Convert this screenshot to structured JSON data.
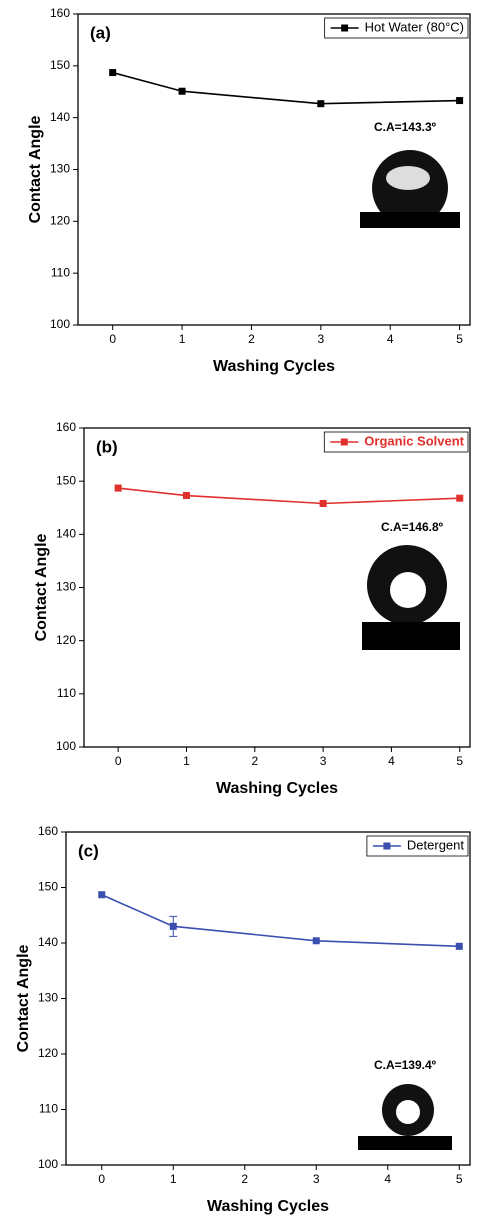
{
  "chart_data": [
    {
      "type": "line",
      "panel_label": "(a)",
      "annotation": "C.A=143.3º",
      "x_label": "Washing Cycles",
      "y_label": "Contact Angle",
      "x": [
        0,
        1,
        3,
        5
      ],
      "xlim": [
        -0.5,
        5.15
      ],
      "xticks": [
        0,
        1,
        2,
        3,
        4,
        5
      ],
      "ylim": [
        100,
        160
      ],
      "yticks": [
        100,
        110,
        120,
        130,
        140,
        150,
        160
      ],
      "legend": "upper right",
      "series": [
        {
          "name": "Hot Water (80°C)",
          "color": "#000000",
          "values": [
            148.7,
            145.1,
            142.7,
            143.3
          ]
        }
      ]
    },
    {
      "type": "line",
      "panel_label": "(b)",
      "annotation": "C.A=146.8º",
      "x_label": "Washing Cycles",
      "y_label": "Contact Angle",
      "x": [
        0,
        1,
        3,
        5
      ],
      "xlim": [
        -0.5,
        5.15
      ],
      "xticks": [
        0,
        1,
        2,
        3,
        4,
        5
      ],
      "ylim": [
        100,
        160
      ],
      "yticks": [
        100,
        110,
        120,
        130,
        140,
        150,
        160
      ],
      "legend": "upper right",
      "series": [
        {
          "name": "Organic Solvent",
          "color": "#e0302c",
          "values": [
            148.7,
            147.3,
            145.8,
            146.8
          ]
        }
      ]
    },
    {
      "type": "line",
      "panel_label": "(c)",
      "annotation": "C.A=139.4º",
      "x_label": "Washing Cycles",
      "y_label": "Contact Angle",
      "x": [
        0,
        1,
        3,
        5
      ],
      "xlim": [
        -0.5,
        5.15
      ],
      "xticks": [
        0,
        1,
        2,
        3,
        4,
        5
      ],
      "ylim": [
        100,
        160
      ],
      "yticks": [
        100,
        110,
        120,
        130,
        140,
        150,
        160
      ],
      "legend": "upper right",
      "series": [
        {
          "name": "Detergent",
          "color": "#3a4fb0",
          "values": [
            148.7,
            143.0,
            140.4,
            139.4
          ],
          "errors": [
            null,
            1.8,
            null,
            null
          ]
        }
      ]
    }
  ]
}
